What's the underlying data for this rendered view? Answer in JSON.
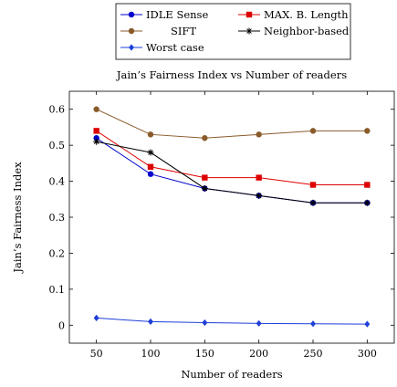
{
  "chart_data": {
    "type": "line",
    "title": "Jain’s Fairness Index vs Number of readers",
    "xlabel": "Number of readers",
    "ylabel": "Jain’s Fairness Index",
    "x": [
      50,
      100,
      150,
      200,
      250,
      300
    ],
    "xlim": [
      25,
      325
    ],
    "ylim": [
      -0.05,
      0.65
    ],
    "xticks": [
      50,
      100,
      150,
      200,
      250,
      300
    ],
    "yticks": [
      0,
      0.1,
      0.2,
      0.3,
      0.4,
      0.5,
      0.6
    ],
    "ytick_labels": [
      "0",
      "0.1",
      "0.2",
      "0.3",
      "0.4",
      "0.5",
      "0.6"
    ],
    "grid": false,
    "legend_position": "top-center",
    "series": [
      {
        "name": "IDLE Sense",
        "color": "#0000cc",
        "marker": "circle",
        "values": [
          0.52,
          0.42,
          0.38,
          0.36,
          0.34,
          0.34
        ]
      },
      {
        "name": "MAX. B. Length",
        "color": "#dd0000",
        "marker": "square",
        "values": [
          0.54,
          0.44,
          0.41,
          0.41,
          0.39,
          0.39
        ]
      },
      {
        "name": "SIFT",
        "color": "#8a5a2a",
        "marker": "circle",
        "values": [
          0.6,
          0.53,
          0.52,
          0.53,
          0.54,
          0.54
        ]
      },
      {
        "name": "Neighbor-based",
        "color": "#000000",
        "marker": "star",
        "values": [
          0.51,
          0.48,
          0.38,
          0.36,
          0.34,
          0.34
        ]
      },
      {
        "name": "Worst case",
        "color": "#1e3fd8",
        "marker": "diamond",
        "values": [
          0.02,
          0.01,
          0.007,
          0.005,
          0.004,
          0.003
        ]
      }
    ]
  }
}
